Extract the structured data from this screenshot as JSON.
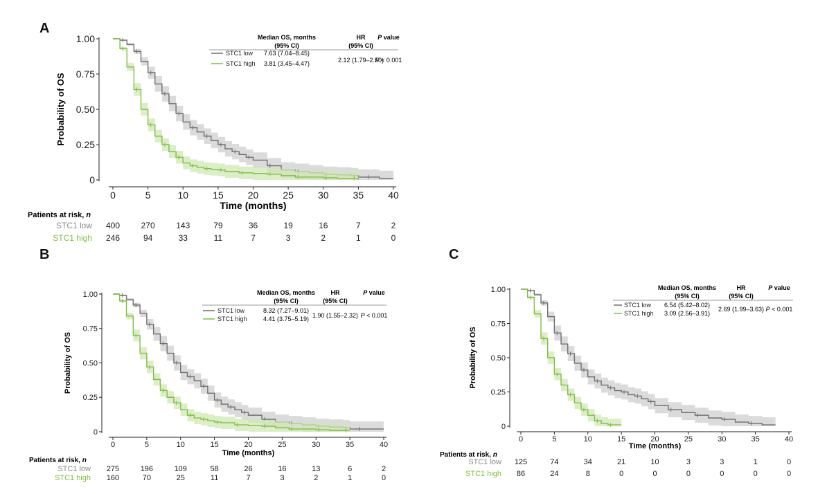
{
  "figure": {
    "colors": {
      "low": "#6e6e6e",
      "high": "#7fbf3f",
      "lowBand": "#cfcfcf",
      "highBand": "#cfe8b4",
      "axis": "#222222"
    }
  },
  "chart_data": [
    {
      "type": "line",
      "panel": "A",
      "title": "",
      "xlabel": "Time (months)",
      "ylabel": "Probability of OS",
      "xlim": [
        0,
        40
      ],
      "ylim": [
        0,
        1
      ],
      "x_ticks": [
        "0",
        "5",
        "10",
        "15",
        "20",
        "25",
        "30",
        "35",
        "40"
      ],
      "y_ticks": [
        "0",
        "0.25",
        "0.50",
        "0.75",
        "1.00"
      ],
      "table_headers": {
        "median": "Median OS, months",
        "median_ci": "(95% CI)",
        "hr": "HR",
        "hr_ci": "(95% CI)",
        "p_italic": "P",
        "p_rest": " value"
      },
      "hr_value": "2.12 (1.79–2.50)",
      "p_italic_prefix": "P",
      "p_value": " < 0.001",
      "risk_title": "Patients at risk, ",
      "risk_title_n": "n",
      "risk_times": [
        0,
        5,
        10,
        15,
        20,
        25,
        30,
        35,
        40
      ],
      "series": [
        {
          "name": "STC1 low",
          "median": "7.63 (7.04–8.45)",
          "x": [
            0,
            1,
            2,
            3,
            4,
            5,
            6,
            7,
            8,
            9,
            10,
            11,
            12,
            13,
            14,
            15,
            16,
            17,
            18,
            19,
            20,
            22,
            24,
            26,
            28,
            30,
            32,
            34,
            35,
            36,
            38,
            40
          ],
          "y": [
            1.0,
            0.99,
            0.96,
            0.91,
            0.84,
            0.76,
            0.68,
            0.61,
            0.54,
            0.47,
            0.41,
            0.37,
            0.34,
            0.31,
            0.28,
            0.25,
            0.22,
            0.2,
            0.18,
            0.16,
            0.14,
            0.1,
            0.07,
            0.06,
            0.05,
            0.04,
            0.035,
            0.03,
            0.02,
            0.02,
            0.01,
            0.01
          ],
          "risk": [
            "400",
            "270",
            "143",
            "79",
            "36",
            "19",
            "16",
            "7",
            "2"
          ]
        },
        {
          "name": "STC1 high",
          "median": "3.81 (3.45–4.47)",
          "x": [
            0,
            1,
            2,
            3,
            4,
            5,
            6,
            7,
            8,
            9,
            10,
            11,
            12,
            13,
            14,
            15,
            16,
            18,
            20,
            22,
            24,
            26,
            28,
            30,
            32,
            34,
            35
          ],
          "y": [
            1.0,
            0.93,
            0.8,
            0.64,
            0.5,
            0.39,
            0.31,
            0.25,
            0.2,
            0.16,
            0.12,
            0.1,
            0.09,
            0.08,
            0.075,
            0.07,
            0.06,
            0.05,
            0.045,
            0.04,
            0.03,
            0.02,
            0.02,
            0.015,
            0.01,
            0.01,
            0.0
          ],
          "risk": [
            "246",
            "94",
            "33",
            "11",
            "7",
            "3",
            "2",
            "1",
            "0"
          ]
        }
      ]
    },
    {
      "type": "line",
      "panel": "B",
      "title": "",
      "xlabel": "Time (months)",
      "ylabel": "Probability of OS",
      "xlim": [
        0,
        40
      ],
      "ylim": [
        0,
        1
      ],
      "x_ticks": [
        "0",
        "5",
        "10",
        "15",
        "20",
        "25",
        "30",
        "35",
        "40"
      ],
      "y_ticks": [
        "0",
        "0.25",
        "0.50",
        "0.75",
        "1.00"
      ],
      "table_headers": {
        "median": "Median OS, months",
        "median_ci": "(95% CI)",
        "hr": "HR",
        "hr_ci": "(95% CI)",
        "p_italic": "P",
        "p_rest": " value"
      },
      "hr_value": "1.90 (1.55–2.32)",
      "p_italic_prefix": "P",
      "p_value": " < 0.001",
      "risk_title": "Patients at risk, ",
      "risk_title_n": "n",
      "risk_times": [
        0,
        5,
        10,
        15,
        20,
        25,
        30,
        35,
        40
      ],
      "series": [
        {
          "name": "STC1 low",
          "median": "8.32 (7.27–9.01)",
          "x": [
            0,
            1,
            2,
            3,
            4,
            5,
            6,
            7,
            8,
            9,
            10,
            11,
            12,
            13,
            14,
            15,
            16,
            17,
            18,
            19,
            20,
            22,
            24,
            26,
            28,
            30,
            32,
            34,
            35,
            36,
            38,
            40
          ],
          "y": [
            1.0,
            0.99,
            0.96,
            0.92,
            0.86,
            0.78,
            0.71,
            0.64,
            0.57,
            0.5,
            0.43,
            0.4,
            0.37,
            0.33,
            0.28,
            0.23,
            0.2,
            0.18,
            0.16,
            0.14,
            0.12,
            0.09,
            0.07,
            0.06,
            0.05,
            0.04,
            0.035,
            0.03,
            0.02,
            0.02,
            0.02,
            0.02
          ],
          "risk": [
            "275",
            "196",
            "109",
            "58",
            "26",
            "16",
            "13",
            "6",
            "2"
          ]
        },
        {
          "name": "STC1 high",
          "median": "4.41 (3.75–5.19)",
          "x": [
            0,
            1,
            2,
            3,
            4,
            5,
            6,
            7,
            8,
            9,
            10,
            11,
            12,
            13,
            14,
            15,
            16,
            18,
            20,
            22,
            24,
            26,
            28,
            30,
            32,
            34,
            35
          ],
          "y": [
            1.0,
            0.95,
            0.84,
            0.7,
            0.57,
            0.47,
            0.38,
            0.3,
            0.25,
            0.21,
            0.16,
            0.12,
            0.1,
            0.09,
            0.08,
            0.07,
            0.065,
            0.05,
            0.045,
            0.04,
            0.03,
            0.02,
            0.02,
            0.015,
            0.01,
            0.01,
            0.01
          ],
          "risk": [
            "160",
            "70",
            "25",
            "11",
            "7",
            "3",
            "2",
            "1",
            "0"
          ]
        }
      ]
    },
    {
      "type": "line",
      "panel": "C",
      "title": "",
      "xlabel": "Time (months)",
      "ylabel": "Probability of OS",
      "xlim": [
        0,
        40
      ],
      "ylim": [
        0,
        1
      ],
      "x_ticks": [
        "0",
        "5",
        "10",
        "15",
        "20",
        "25",
        "30",
        "35",
        "40"
      ],
      "y_ticks": [
        "0",
        "0.25",
        "0.50",
        "0.75",
        "1.00"
      ],
      "table_headers": {
        "median": "Median OS, months",
        "median_ci": "(95% CI)",
        "hr": "HR",
        "hr_ci": "(95% CI)",
        "p_italic": "P",
        "p_rest": " value"
      },
      "hr_value": "2.69 (1.99–3.63)",
      "p_italic_prefix": "P",
      "p_value": " < 0.001",
      "risk_title": "Patients at risk, ",
      "risk_title_n": "n",
      "risk_times": [
        0,
        5,
        10,
        15,
        20,
        25,
        30,
        35,
        40
      ],
      "series": [
        {
          "name": "STC1 low",
          "median": "6.54 (5.42–8.02)",
          "x": [
            0,
            1,
            2,
            3,
            4,
            5,
            6,
            7,
            8,
            9,
            10,
            11,
            12,
            13,
            14,
            15,
            16,
            17,
            18,
            19,
            20,
            22,
            24,
            26,
            28,
            30,
            32,
            34,
            36,
            38
          ],
          "y": [
            1.0,
            0.99,
            0.96,
            0.9,
            0.8,
            0.68,
            0.6,
            0.53,
            0.46,
            0.41,
            0.36,
            0.33,
            0.3,
            0.28,
            0.26,
            0.25,
            0.23,
            0.22,
            0.2,
            0.18,
            0.15,
            0.12,
            0.1,
            0.08,
            0.06,
            0.05,
            0.03,
            0.02,
            0.01,
            0.01
          ],
          "risk": [
            "125",
            "74",
            "34",
            "21",
            "10",
            "3",
            "3",
            "1",
            "0"
          ]
        },
        {
          "name": "STC1 high",
          "median": "3.09 (2.56–3.91)",
          "x": [
            0,
            1,
            2,
            3,
            4,
            5,
            6,
            7,
            8,
            9,
            10,
            11,
            12,
            13,
            14,
            15
          ],
          "y": [
            1.0,
            0.94,
            0.82,
            0.64,
            0.5,
            0.38,
            0.3,
            0.23,
            0.17,
            0.12,
            0.08,
            0.04,
            0.02,
            0.01,
            0.01,
            0.01
          ],
          "risk": [
            "86",
            "24",
            "8",
            "0",
            "0",
            "0",
            "0",
            "0",
            "0"
          ]
        }
      ]
    }
  ]
}
